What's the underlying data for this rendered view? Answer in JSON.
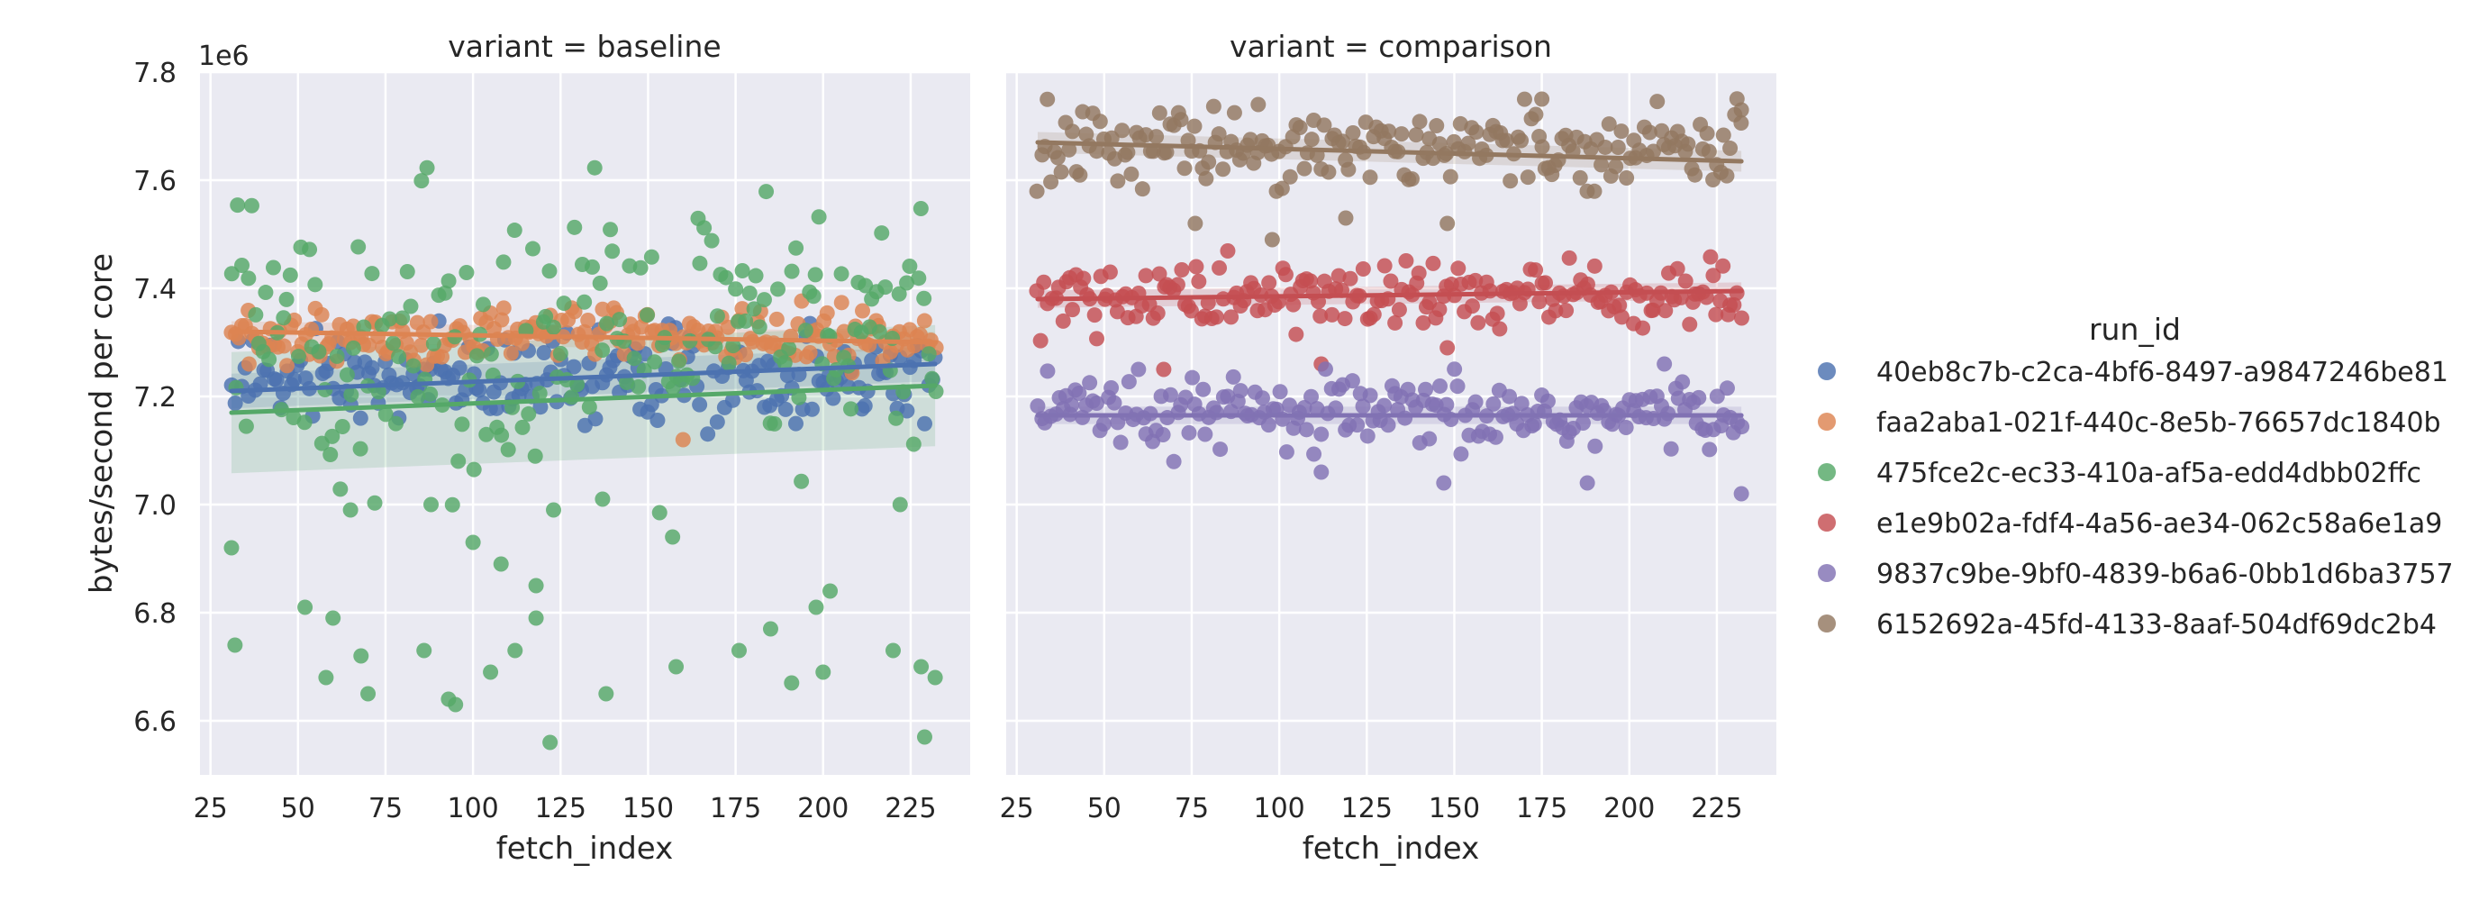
{
  "chart_data": {
    "type": "scatter",
    "ylabel": "bytes/second per core",
    "y_offset_label": "1e6",
    "y_scale": 1000000,
    "ylim": [
      6.5,
      7.8
    ],
    "yticks": [
      6.6,
      6.8,
      7.0,
      7.2,
      7.4,
      7.6,
      7.8
    ],
    "xlim": [
      22,
      242
    ],
    "xticks": [
      25,
      50,
      75,
      100,
      125,
      150,
      175,
      200,
      225
    ],
    "grid": true,
    "legend": {
      "title": "run_id",
      "placement": "right",
      "entries": [
        {
          "name": "40eb8c7b-c2ca-4bf6-8497-a9847246be81",
          "color": "#4c72b0"
        },
        {
          "name": "faa2aba1-021f-440c-8e5b-76657dc1840b",
          "color": "#dd8452"
        },
        {
          "name": "475fce2c-ec33-410a-af5a-edd4dbb02ffc",
          "color": "#55a868"
        },
        {
          "name": "e1e9b02a-fdf4-4a56-ae34-062c58a6e1a9",
          "color": "#c44e52"
        },
        {
          "name": "9837c9be-9bf0-4839-b6a6-0bb1d6ba3757",
          "color": "#8172b3"
        },
        {
          "name": "6152692a-45fd-4133-8aaf-504df69dc2b4",
          "color": "#937860"
        }
      ]
    },
    "facets": [
      {
        "title": "variant = baseline",
        "xlabel": "fetch_index",
        "series": [
          {
            "name": "40eb8c7b-c2ca-4bf6-8497-a9847246be81",
            "color": "#4c72b0",
            "x_range": [
              31,
              232
            ],
            "center": 7.235,
            "spread": 0.055,
            "fit": [
              [
                31,
                7.21
              ],
              [
                232,
                7.26
              ]
            ],
            "band": 0.02,
            "outliers": []
          },
          {
            "name": "faa2aba1-021f-440c-8e5b-76657dc1840b",
            "color": "#dd8452",
            "x_range": [
              31,
              232
            ],
            "center": 7.31,
            "spread": 0.035,
            "fit": [
              [
                31,
                7.32
              ],
              [
                232,
                7.3
              ]
            ],
            "band": 0.012,
            "outliers": [
              [
                160,
                7.12
              ],
              [
                36,
                7.26
              ]
            ]
          },
          {
            "name": "475fce2c-ec33-410a-af5a-edd4dbb02ffc",
            "color": "#55a868",
            "x_range": [
              31,
              232
            ],
            "center": 7.3,
            "spread": 0.17,
            "fit": [
              [
                31,
                7.17
              ],
              [
                232,
                7.22
              ]
            ],
            "band": 0.07,
            "outliers": [
              [
                31,
                6.92
              ],
              [
                32,
                6.74
              ],
              [
                52,
                6.81
              ],
              [
                58,
                6.68
              ],
              [
                68,
                6.72
              ],
              [
                70,
                6.65
              ],
              [
                86,
                6.73
              ],
              [
                93,
                6.64
              ],
              [
                95,
                6.63
              ],
              [
                105,
                6.69
              ],
              [
                108,
                6.89
              ],
              [
                112,
                6.73
              ],
              [
                118,
                6.79
              ],
              [
                122,
                6.56
              ],
              [
                138,
                6.65
              ],
              [
                158,
                6.7
              ],
              [
                176,
                6.73
              ],
              [
                185,
                6.77
              ],
              [
                191,
                6.67
              ],
              [
                198,
                6.81
              ],
              [
                200,
                6.69
              ],
              [
                202,
                6.84
              ],
              [
                220,
                6.73
              ],
              [
                228,
                6.7
              ],
              [
                229,
                6.57
              ],
              [
                232,
                6.68
              ],
              [
                60,
                6.79
              ],
              [
                88,
                7.0
              ],
              [
                118,
                6.85
              ],
              [
                123,
                6.99
              ],
              [
                137,
                7.01
              ],
              [
                157,
                6.94
              ],
              [
                222,
                7.0
              ],
              [
                100,
                6.93
              ],
              [
                65,
                6.99
              ]
            ]
          }
        ]
      },
      {
        "title": "variant = comparison",
        "xlabel": "fetch_index",
        "series": [
          {
            "name": "e1e9b02a-fdf4-4a56-ae34-062c58a6e1a9",
            "color": "#c44e52",
            "x_range": [
              31,
              232
            ],
            "center": 7.385,
            "spread": 0.045,
            "fit": [
              [
                31,
                7.38
              ],
              [
                232,
                7.395
              ]
            ],
            "band": 0.01,
            "outliers": [
              [
                112,
                7.26
              ],
              [
                148,
                7.29
              ],
              [
                67,
                7.25
              ]
            ]
          },
          {
            "name": "9837c9be-9bf0-4839-b6a6-0bb1d6ba3757",
            "color": "#8172b3",
            "x_range": [
              31,
              232
            ],
            "center": 7.165,
            "spread": 0.045,
            "fit": [
              [
                31,
                7.165
              ],
              [
                232,
                7.165
              ]
            ],
            "band": 0.01,
            "outliers": [
              [
                147,
                7.04
              ],
              [
                188,
                7.04
              ],
              [
                232,
                7.02
              ],
              [
                112,
                7.06
              ],
              [
                210,
                7.26
              ]
            ]
          },
          {
            "name": "6152692a-45fd-4133-8aaf-504df69dc2b4",
            "color": "#937860",
            "x_range": [
              31,
              232
            ],
            "center": 7.665,
            "spread": 0.045,
            "fit": [
              [
                31,
                7.67
              ],
              [
                232,
                7.635
              ]
            ],
            "band": 0.012,
            "outliers": [
              [
                76,
                7.52
              ],
              [
                98,
                7.49
              ],
              [
                148,
                7.52
              ],
              [
                119,
                7.53
              ],
              [
                94,
                7.74
              ],
              [
                175,
                7.75
              ],
              [
                232,
                7.73
              ]
            ]
          }
        ]
      }
    ]
  }
}
